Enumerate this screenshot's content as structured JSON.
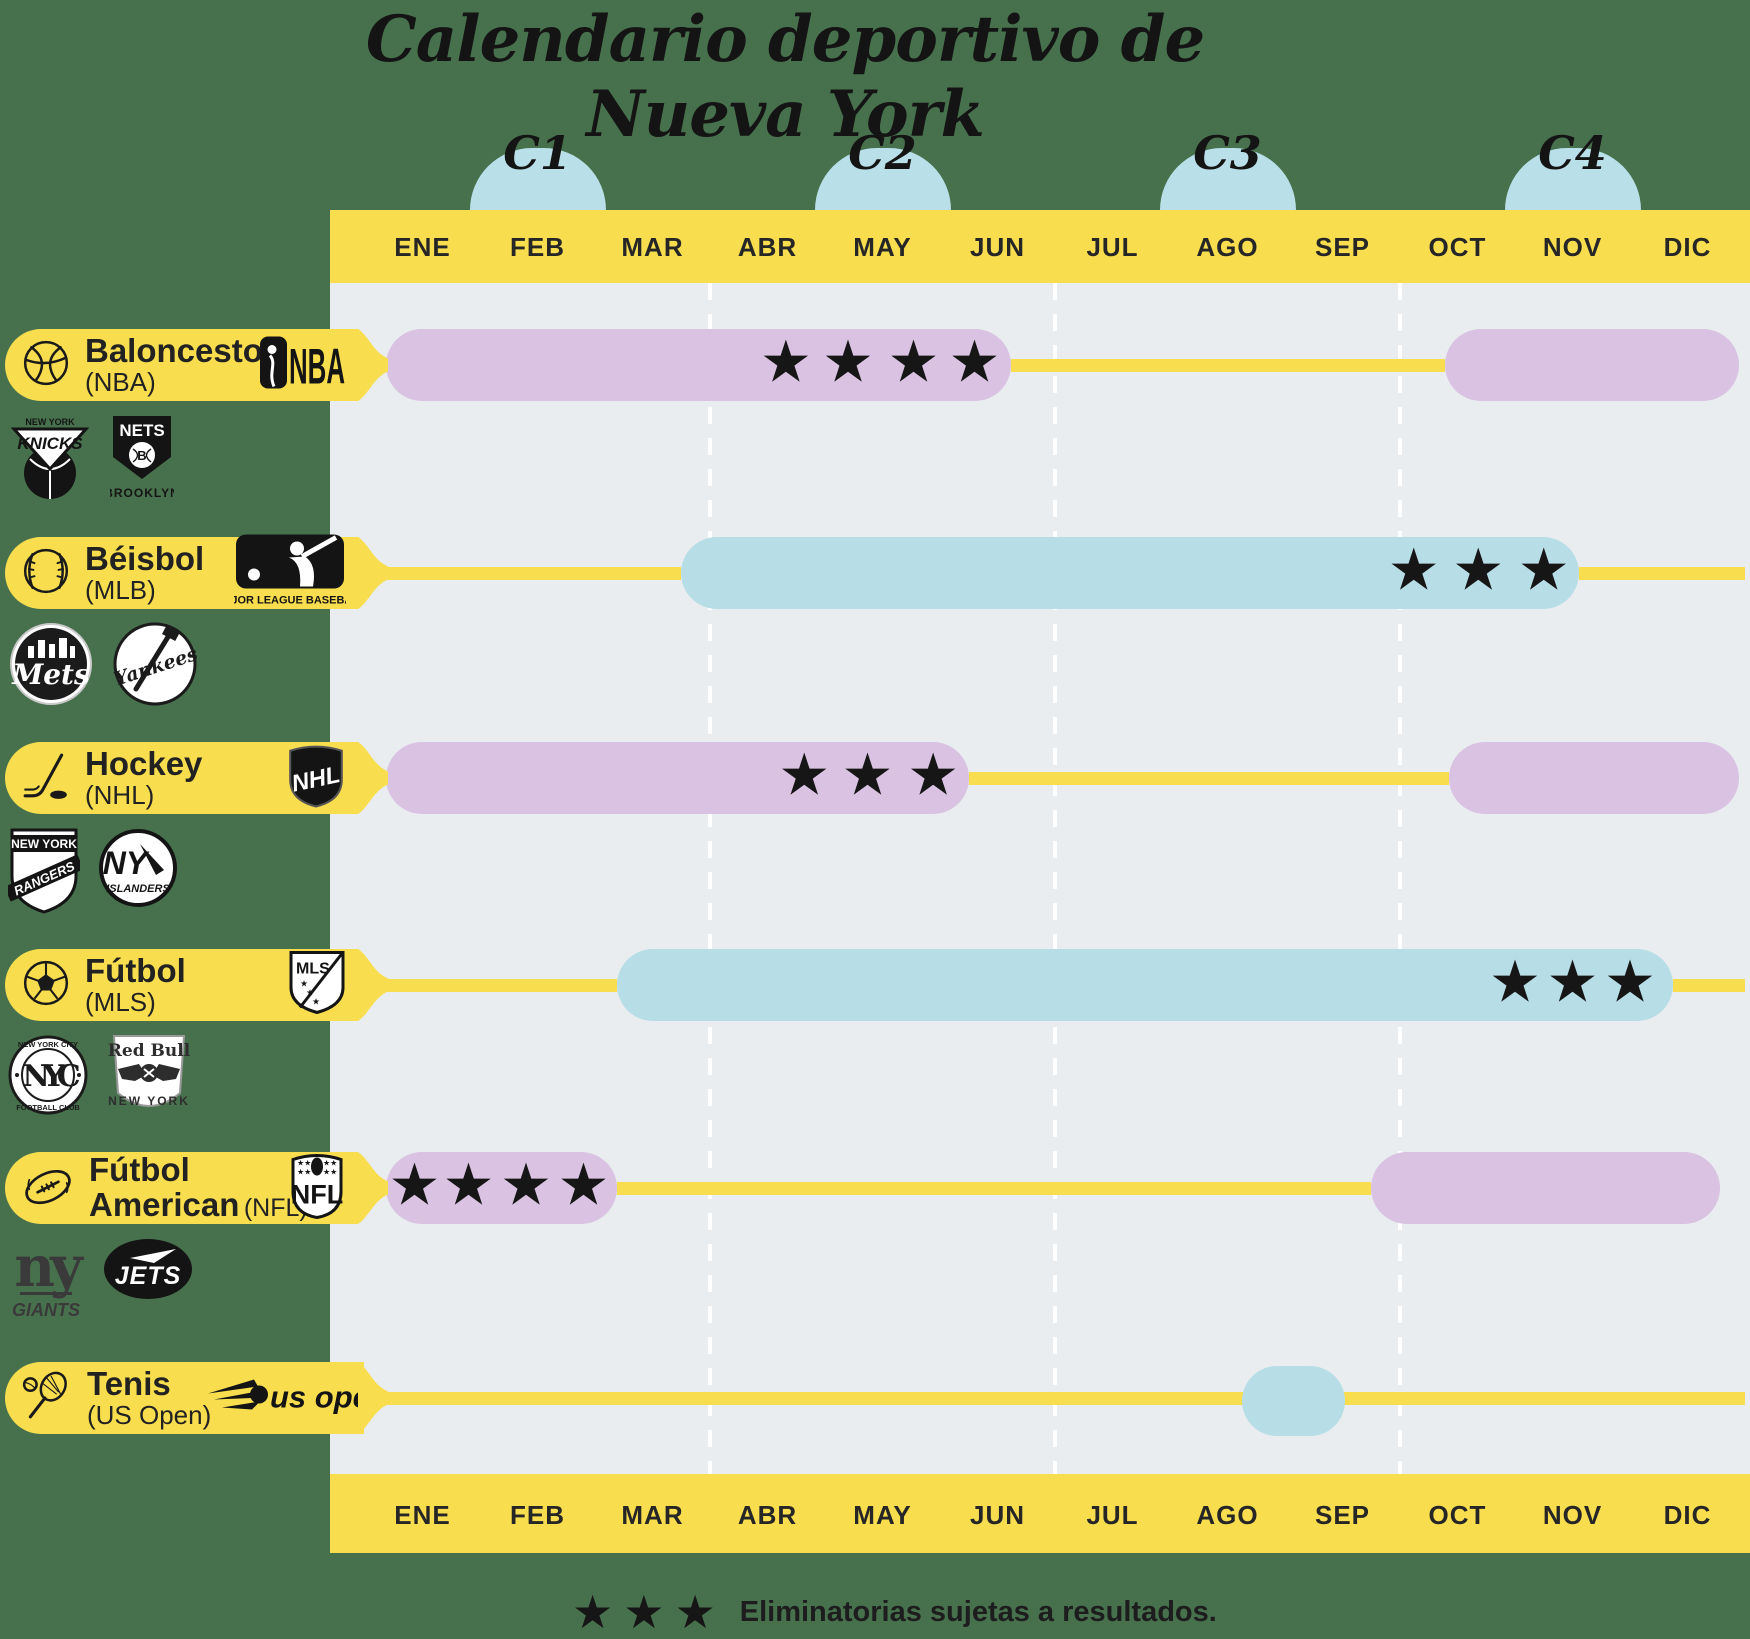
{
  "title": "Calendario deportivo de Nueva York",
  "months": [
    "ENE",
    "FEB",
    "MAR",
    "ABR",
    "MAY",
    "JUN",
    "JUL",
    "AGO",
    "SEP",
    "OCT",
    "NOV",
    "DIC"
  ],
  "quarters": [
    {
      "label": "C1",
      "month_center": 1.5
    },
    {
      "label": "C2",
      "month_center": 4.5
    },
    {
      "label": "C3",
      "month_center": 7.5
    },
    {
      "label": "C4",
      "month_center": 10.5
    }
  ],
  "legend": {
    "stars": 3,
    "text": "Eliminatorias sujetas a resultados."
  },
  "colors": {
    "background": "#47714D",
    "chart_bg": "#E9EDF0",
    "yellow": "#F8DE4E",
    "purple": "#D9C2E2",
    "blue": "#B7DDE6",
    "bump_blue": "#B9DFE8",
    "star": "#161616",
    "text_dark": "#1F1F1F"
  },
  "chart": {
    "divider_months": [
      3,
      6,
      9
    ]
  },
  "rows": [
    {
      "id": "baloncesto",
      "name": "Baloncesto",
      "sub": "(NBA)",
      "icon": "basketball-icon",
      "league": {
        "id": "nba",
        "text": "NBA"
      },
      "teams": [
        {
          "id": "knicks",
          "text": "KNICKS",
          "sub": "NEW YORK"
        },
        {
          "id": "nets",
          "text": "NETS",
          "sub": "BROOKLYN",
          "ball": "B"
        }
      ],
      "segments": [
        {
          "type": "pill",
          "color": "purple",
          "start": 0.18,
          "end": 5.62
        },
        {
          "type": "line",
          "start": 5.62,
          "end": 9.39
        },
        {
          "type": "pill",
          "color": "purple",
          "start": 9.39,
          "end": 11.95
        }
      ],
      "stars": [
        3.66,
        4.2,
        4.77,
        5.3
      ]
    },
    {
      "id": "beisbol",
      "name": "Béisbol",
      "sub": "(MLB)",
      "icon": "baseball-icon",
      "league": {
        "id": "mlb",
        "caption": "MAJOR LEAGUE BASEBALL"
      },
      "teams": [
        {
          "id": "mets",
          "text": "Mets"
        },
        {
          "id": "yankees",
          "text": "Yankees"
        }
      ],
      "segments": [
        {
          "type": "line",
          "start": 0.18,
          "end": 2.75
        },
        {
          "type": "pill",
          "color": "blue",
          "start": 2.75,
          "end": 10.56
        },
        {
          "type": "line",
          "start": 10.56,
          "end": 12
        }
      ],
      "stars": [
        9.12,
        9.68,
        10.25
      ]
    },
    {
      "id": "hockey",
      "name": "Hockey",
      "sub": "(NHL)",
      "icon": "hockey-stick-icon",
      "league": {
        "id": "nhl",
        "text": "NHL"
      },
      "teams": [
        {
          "id": "rangers",
          "text": "RANGERS",
          "sub": "NEW YORK"
        },
        {
          "id": "islanders",
          "text": "ISLANDERS",
          "extra": "NY"
        }
      ],
      "segments": [
        {
          "type": "pill",
          "color": "purple",
          "start": 0.18,
          "end": 5.25
        },
        {
          "type": "line",
          "start": 5.25,
          "end": 9.43
        },
        {
          "type": "pill",
          "color": "purple",
          "start": 9.43,
          "end": 11.95
        }
      ],
      "stars": [
        3.82,
        4.37,
        4.94
      ]
    },
    {
      "id": "futbol",
      "name": "Fútbol",
      "sub": "(MLS)",
      "icon": "soccer-ball-icon",
      "league": {
        "id": "mls",
        "text": "MLS"
      },
      "teams": [
        {
          "id": "nycfc",
          "text": "NYC",
          "sub": "NEW YORK CITY",
          "sub2": "FOOTBALL CLUB"
        },
        {
          "id": "redbull",
          "text": "Red Bull",
          "sub": "NEW YORK"
        }
      ],
      "segments": [
        {
          "type": "line",
          "start": 0.18,
          "end": 2.19
        },
        {
          "type": "pill",
          "color": "blue",
          "start": 2.19,
          "end": 11.37
        },
        {
          "type": "line",
          "start": 11.37,
          "end": 12
        }
      ],
      "stars": [
        10.0,
        10.5,
        11.0
      ]
    },
    {
      "id": "futbol-americano",
      "name": "Fútbol",
      "name2": "American",
      "sub": "(NFL)",
      "icon": "american-football-icon",
      "league": {
        "id": "nfl",
        "text": "NFL"
      },
      "teams": [
        {
          "id": "giants",
          "text": "ny",
          "sub": "GIANTS"
        },
        {
          "id": "jets",
          "text": "JETS"
        }
      ],
      "segments": [
        {
          "type": "pill",
          "color": "purple",
          "start": 0.18,
          "end": 2.19
        },
        {
          "type": "line",
          "start": 2.19,
          "end": 8.75
        },
        {
          "type": "pill",
          "color": "purple",
          "start": 8.75,
          "end": 11.78
        }
      ],
      "stars": [
        0.43,
        0.9,
        1.4,
        1.9
      ]
    },
    {
      "id": "tenis",
      "name": "Tenis",
      "sub": "(US Open)",
      "icon": "tennis-racket-icon",
      "league": {
        "id": "usopen",
        "text": "us open"
      },
      "teams": [],
      "segments": [
        {
          "type": "line",
          "start": 0.18,
          "end": 12
        },
        {
          "type": "pill",
          "color": "blue",
          "start": 7.63,
          "end": 8.52,
          "height": 70,
          "dy": 3
        }
      ],
      "stars": []
    }
  ],
  "chart_data": {
    "type": "gantt",
    "title": "Calendario deportivo de Nueva York",
    "x_axis": {
      "tick_labels": [
        "ENE",
        "FEB",
        "MAR",
        "ABR",
        "MAY",
        "JUN",
        "JUL",
        "AGO",
        "SEP",
        "OCT",
        "NOV",
        "DIC"
      ],
      "range_months": [
        0,
        12
      ],
      "quarter_markers": [
        "C1",
        "C2",
        "C3",
        "C4"
      ],
      "grid_dashed_after_months": [
        3,
        6,
        9
      ]
    },
    "series": [
      {
        "name": "Baloncesto (NBA)",
        "teams": [
          "Knicks",
          "Nets"
        ],
        "season_bars_months": [
          [
            0.18,
            5.62
          ],
          [
            9.39,
            11.95
          ]
        ],
        "bar_color": "#D9C2E2",
        "playoff_star_months": [
          3.66,
          4.2,
          4.77,
          5.3
        ]
      },
      {
        "name": "Béisbol (MLB)",
        "teams": [
          "Mets",
          "Yankees"
        ],
        "season_bars_months": [
          [
            2.75,
            10.56
          ]
        ],
        "bar_color": "#B7DDE6",
        "playoff_star_months": [
          9.12,
          9.68,
          10.25
        ]
      },
      {
        "name": "Hockey (NHL)",
        "teams": [
          "Rangers",
          "Islanders"
        ],
        "season_bars_months": [
          [
            0.18,
            5.25
          ],
          [
            9.43,
            11.95
          ]
        ],
        "bar_color": "#D9C2E2",
        "playoff_star_months": [
          3.82,
          4.37,
          4.94
        ]
      },
      {
        "name": "Fútbol (MLS)",
        "teams": [
          "NYCFC",
          "Red Bull New York"
        ],
        "season_bars_months": [
          [
            2.19,
            11.37
          ]
        ],
        "bar_color": "#B7DDE6",
        "playoff_star_months": [
          10.0,
          10.5,
          11.0
        ]
      },
      {
        "name": "Fútbol American (NFL)",
        "teams": [
          "Giants",
          "Jets"
        ],
        "season_bars_months": [
          [
            0.18,
            2.19
          ],
          [
            8.75,
            11.78
          ]
        ],
        "bar_color": "#D9C2E2",
        "playoff_star_months": [
          0.43,
          0.9,
          1.4,
          1.9
        ]
      },
      {
        "name": "Tenis (US Open)",
        "teams": [],
        "season_bars_months": [
          [
            7.63,
            8.52
          ]
        ],
        "bar_color": "#B7DDE6",
        "playoff_star_months": []
      }
    ],
    "legend": "★★★ Eliminatorias sujetas a resultados."
  }
}
